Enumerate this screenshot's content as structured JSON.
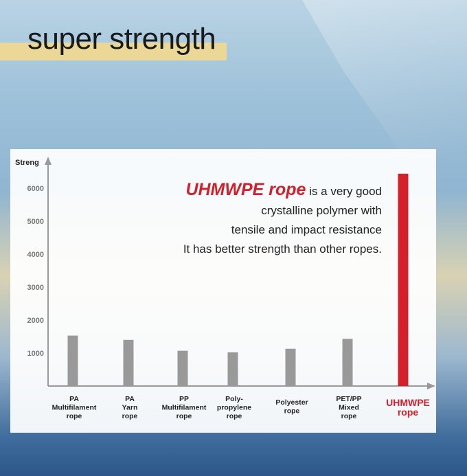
{
  "header": {
    "title": "super strength"
  },
  "description": {
    "highlight": "UHMWPE rope",
    "lines": [
      " is a very good",
      "crystalline polymer with",
      "tensile and impact resistance",
      "It has better strength than other ropes."
    ]
  },
  "colors": {
    "bar": "#999999",
    "highlight_bar": "#d3202a",
    "axis": "#9a9a9a"
  },
  "chart_data": {
    "type": "bar",
    "ylabel": "Streng",
    "ylim": [
      0,
      6600
    ],
    "yticks": [
      1000,
      2000,
      3000,
      4000,
      5000,
      6000
    ],
    "grid": false,
    "categories": [
      [
        "PA",
        "Multifilament",
        "rope"
      ],
      [
        "PA",
        "Yarn",
        "rope"
      ],
      [
        "PP",
        "Multifilament",
        "rope"
      ],
      [
        "Poly-",
        "propylene",
        "rope"
      ],
      [
        "Polyester",
        "rope"
      ],
      [
        "PET/PP",
        "Mixed",
        "rope"
      ],
      [
        "UHMWPE",
        "rope"
      ]
    ],
    "values": [
      1530,
      1400,
      1070,
      1020,
      1130,
      1430,
      6440
    ],
    "highlight_index": 6
  }
}
